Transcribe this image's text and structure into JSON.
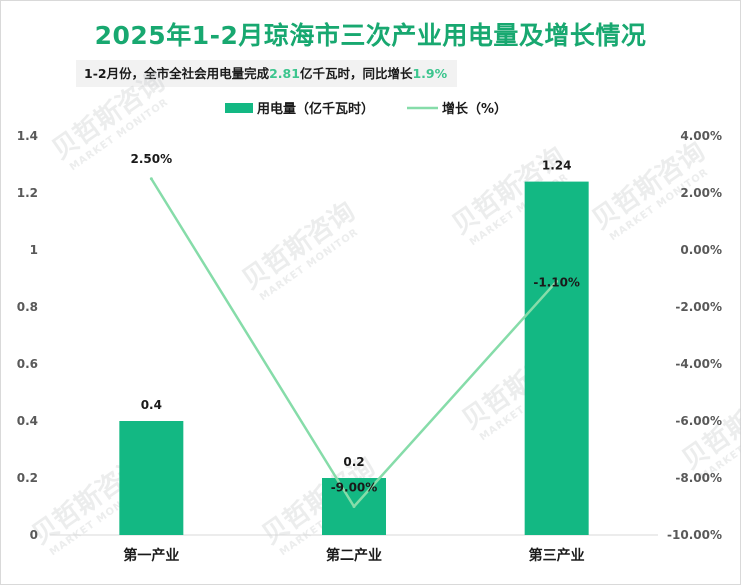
{
  "title": "2025年1-2月琼海市三次产业用电量及增长情况",
  "subtitle": {
    "prefix": "1-2月份，全市全社会用电量完成",
    "value": "2.81",
    "mid": "亿千瓦时，同比增长",
    "growth": "1.9%"
  },
  "watermark": {
    "brand": "贝哲斯咨询",
    "en": "MARKET MONITOR"
  },
  "colors": {
    "bar": "#13b883",
    "line": "#86dca9",
    "title": "#18a870",
    "highlight": "#3cc58e"
  },
  "chart_data": {
    "type": "bar",
    "title": "2025年1-2月琼海市三次产业用电量及增长情况",
    "categories": [
      "第一产业",
      "第二产业",
      "第三产业"
    ],
    "legend_position": "top-center",
    "series": [
      {
        "name": "用电量（亿千瓦时）",
        "type": "bar",
        "axis": "left",
        "values": [
          0.4,
          0.2,
          1.24
        ],
        "labels": [
          "0.4",
          "0.2",
          "1.24"
        ]
      },
      {
        "name": "增长（%）",
        "type": "line",
        "axis": "right",
        "values": [
          2.5,
          -9.0,
          -1.1
        ],
        "labels": [
          "2.50%",
          "-9.00%",
          "-1.10%"
        ]
      }
    ],
    "y_left": {
      "min": 0,
      "max": 1.4,
      "ticks": [
        0,
        0.2,
        0.4,
        0.6,
        0.8,
        1,
        1.2,
        1.4
      ],
      "tick_labels": [
        "0",
        "0.2",
        "0.4",
        "0.6",
        "0.8",
        "1",
        "1.2",
        "1.4"
      ]
    },
    "y_right": {
      "min": -10,
      "max": 4,
      "ticks": [
        -10,
        -8,
        -6,
        -4,
        -2,
        0,
        2,
        4
      ],
      "tick_labels": [
        "-10.00%",
        "-8.00%",
        "-6.00%",
        "-4.00%",
        "-2.00%",
        "0.00%",
        "2.00%",
        "4.00%"
      ]
    },
    "grid": false
  }
}
